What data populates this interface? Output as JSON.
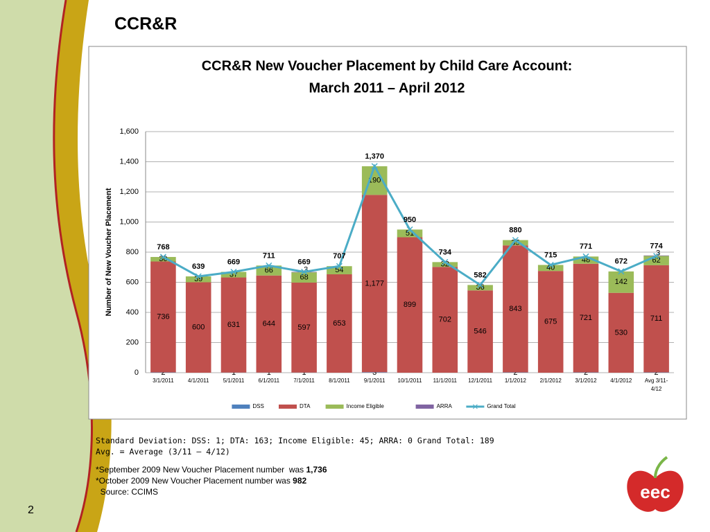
{
  "slide": {
    "title": "CCR&R",
    "page_number": "2",
    "notes": [
      [
        {
          "text": "Standard Deviation: DSS: 1; DTA: 163; Income Eligible: 45; ARRA: 0 Grand Total: 189"
        }
      ],
      [
        {
          "text": "Avg. = Average (3/11 – 4/12)"
        }
      ],
      [
        {
          "text": "*September 2009 New Voucher Placement number  was "
        },
        {
          "text": "1,736",
          "bold": true
        }
      ],
      [
        {
          "text": "*October 2009 New Voucher Placement number was "
        },
        {
          "text": "982",
          "bold": true
        }
      ],
      [
        {
          "text": "  Source: CCIMS"
        }
      ]
    ],
    "logo": "eec"
  },
  "chart_data": {
    "type": "bar",
    "stacked": true,
    "title": "CCR&R New Voucher Placement by Child Care Account:",
    "subtitle": "March 2011 – April 2012",
    "y_label": "Number of New Voucher Placement",
    "categories": [
      "3/1/2011",
      "4/1/2011",
      "5/1/2011",
      "6/1/2011",
      "7/1/2011",
      "8/1/2011",
      "9/1/2011",
      "10/1/2011",
      "11/1/2011",
      "12/1/2011",
      "1/1/2012",
      "2/1/2012",
      "3/1/2012",
      "4/1/2012",
      "Avg 3/11-4/12"
    ],
    "ylim": [
      0,
      1600
    ],
    "yticks": [
      0,
      200,
      400,
      600,
      800,
      {
        "value": 1000,
        "label": "1,000"
      },
      {
        "value": 1200,
        "label": "1,200"
      },
      {
        "value": 1400,
        "label": "1,400"
      },
      {
        "value": 1600,
        "label": "1,600"
      }
    ],
    "grid": true,
    "legend": "bottom",
    "series": [
      {
        "name": "DSS",
        "color": "#4f81bd",
        "values": [
          2,
          null,
          1,
          1,
          1,
          null,
          3,
          null,
          null,
          null,
          2,
          null,
          2,
          null,
          2
        ]
      },
      {
        "name": "DTA",
        "color": "#c0504d",
        "values": [
          736,
          600,
          631,
          644,
          597,
          653,
          1177,
          899,
          702,
          546,
          843,
          675,
          721,
          530,
          711
        ],
        "value_labels": [
          "736",
          "600",
          "631",
          "644",
          "597",
          "653",
          "1,177",
          "899",
          "702",
          "546",
          "843",
          "675",
          "721",
          "530",
          "711"
        ]
      },
      {
        "name": "Income Eligible",
        "color": "#9bbb59",
        "values": [
          30,
          39,
          37,
          66,
          68,
          54,
          190,
          51,
          32,
          36,
          35,
          40,
          48,
          142,
          62
        ]
      },
      {
        "name": "ARRA",
        "color": "#8064a2",
        "values": [
          null,
          null,
          null,
          null,
          3,
          null,
          null,
          null,
          null,
          null,
          null,
          null,
          null,
          null,
          3
        ]
      },
      {
        "name": "Grand Total",
        "color": "#4bacc6",
        "type": "line",
        "values": [
          768,
          639,
          669,
          711,
          669,
          707,
          1370,
          950,
          734,
          582,
          880,
          715,
          771,
          672,
          774
        ],
        "value_labels": [
          "768",
          "639",
          "669",
          "711",
          "669",
          "707",
          "1,370",
          "950",
          "734",
          "582",
          "880",
          "715",
          "771",
          "672",
          "774"
        ]
      }
    ]
  }
}
